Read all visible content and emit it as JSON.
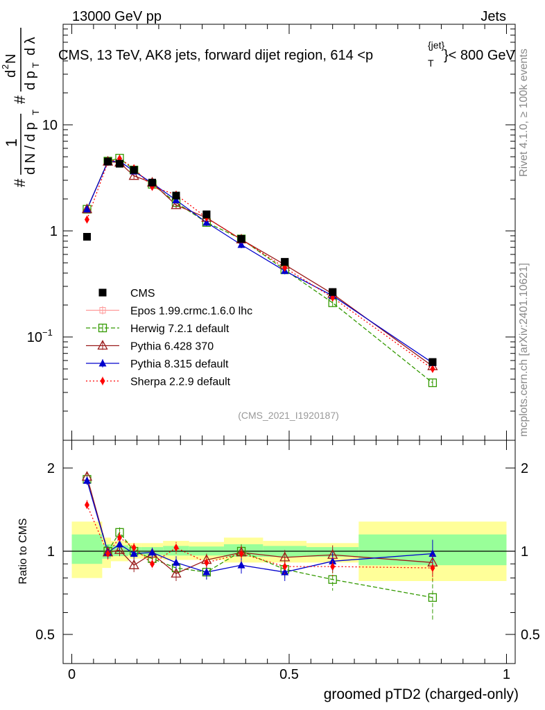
{
  "header": {
    "energy_label": "13000 GeV pp",
    "category_label": "Jets"
  },
  "plot_title": {
    "main": "CMS, 13 TeV, AK8 jets, forward dijet region, 614 <p",
    "sub_T": "T",
    "sup_jet": "{jet}",
    "tail": "}< 800 GeV"
  },
  "side_labels": {
    "rivet": "Rivet 4.1.0, ≥ 100k events",
    "mcplots": "mcplots.cern.ch [arXiv:2401.10621]"
  },
  "analysis_id": "(CMS_2021_I1920187)",
  "y_axis_main": {
    "hash1": "#",
    "num_1": "1",
    "den_dN": "d N / d p",
    "den_sub": "T",
    "hash2": "#",
    "dN_num": "d",
    "dN_sup": "2",
    "dN_N": "N",
    "dp_label": "d p",
    "dp_sub": "T",
    "dlambda": "d λ"
  },
  "chart_data": [
    {
      "type": "line",
      "panel": "main",
      "yscale": "log",
      "ylim": [
        0.012,
        50
      ],
      "xlim": [
        -0.02,
        1.02
      ],
      "yticks": [
        {
          "value": 10,
          "label": "10"
        },
        {
          "value": 1,
          "label": "1"
        },
        {
          "value": 0.1,
          "label": "10",
          "sup": "−1"
        }
      ],
      "x": [
        0.035,
        0.083,
        0.11,
        0.143,
        0.185,
        0.24,
        0.31,
        0.39,
        0.49,
        0.6,
        0.83
      ],
      "series": [
        {
          "name": "CMS",
          "legend": "CMS",
          "color": "#000000",
          "marker": "square-filled",
          "dash": "none",
          "values": [
            0.88,
            4.5,
            4.3,
            3.75,
            2.85,
            2.15,
            1.43,
            0.84,
            0.51,
            0.265,
            0.058
          ]
        },
        {
          "name": "Epos",
          "legend": "Epos 1.99.crmc.1.6.0 lhc",
          "color": "#ff9999",
          "marker": "cross-square",
          "dash": "none",
          "values": [
            null,
            null,
            null,
            null,
            null,
            null,
            null,
            null,
            null,
            null,
            null
          ]
        },
        {
          "name": "Herwig",
          "legend": "Herwig 7.2.1 default",
          "color": "#339900",
          "marker": "square-open",
          "dash": "6,3",
          "values": [
            1.6,
            4.55,
            4.85,
            3.75,
            2.75,
            1.85,
            1.2,
            0.84,
            0.43,
            0.21,
            0.037
          ]
        },
        {
          "name": "Pythia6",
          "legend": "Pythia 6.428 370",
          "color": "#991a1a",
          "marker": "triangle-open",
          "dash": "none",
          "values": [
            1.6,
            4.5,
            4.4,
            3.3,
            2.85,
            1.75,
            1.33,
            0.83,
            0.48,
            0.255,
            0.053
          ]
        },
        {
          "name": "Pythia8",
          "legend": "Pythia 8.315 default",
          "color": "#0000cc",
          "marker": "triangle-filled",
          "dash": "none",
          "values": [
            1.6,
            4.5,
            4.55,
            3.65,
            2.82,
            1.95,
            1.2,
            0.74,
            0.42,
            0.245,
            0.057
          ]
        },
        {
          "name": "Sherpa",
          "legend": "Sherpa 2.2.9 default",
          "color": "#ff0000",
          "marker": "diamond-filled",
          "dash": "2,3",
          "values": [
            1.28,
            4.45,
            4.8,
            3.9,
            2.6,
            2.2,
            1.33,
            0.83,
            0.45,
            0.235,
            0.05
          ]
        }
      ]
    },
    {
      "type": "line",
      "panel": "ratio",
      "yscale": "log",
      "ylim": [
        0.42,
        2.4
      ],
      "xlim": [
        -0.02,
        1.02
      ],
      "ylabel": "Ratio to CMS",
      "xlabel": "groomed pTD2 (charged-only)",
      "yticks": [
        {
          "value": 2,
          "label": "2"
        },
        {
          "value": 1,
          "label": "1"
        },
        {
          "value": 0.5,
          "label": "0.5"
        }
      ],
      "xticks": [
        {
          "value": 0,
          "label": "0"
        },
        {
          "value": 0.5,
          "label": "0.5"
        },
        {
          "value": 1,
          "label": "1"
        }
      ],
      "uncertainty_bins": [
        {
          "x0": 0.0,
          "x1": 0.07,
          "yellow": [
            0.8,
            1.28
          ],
          "green": [
            0.9,
            1.15
          ]
        },
        {
          "x0": 0.07,
          "x1": 0.09,
          "yellow": [
            0.87,
            1.12
          ],
          "green": [
            0.94,
            1.06
          ]
        },
        {
          "x0": 0.09,
          "x1": 0.13,
          "yellow": [
            0.92,
            1.09
          ],
          "green": [
            0.96,
            1.05
          ]
        },
        {
          "x0": 0.13,
          "x1": 0.16,
          "yellow": [
            0.94,
            1.07
          ],
          "green": [
            0.97,
            1.035
          ]
        },
        {
          "x0": 0.16,
          "x1": 0.21,
          "yellow": [
            0.94,
            1.07
          ],
          "green": [
            0.97,
            1.035
          ]
        },
        {
          "x0": 0.21,
          "x1": 0.27,
          "yellow": [
            0.93,
            1.09
          ],
          "green": [
            0.965,
            1.045
          ]
        },
        {
          "x0": 0.27,
          "x1": 0.35,
          "yellow": [
            0.93,
            1.08
          ],
          "green": [
            0.965,
            1.04
          ]
        },
        {
          "x0": 0.35,
          "x1": 0.44,
          "yellow": [
            0.91,
            1.12
          ],
          "green": [
            0.955,
            1.06
          ]
        },
        {
          "x0": 0.44,
          "x1": 0.54,
          "yellow": [
            0.91,
            1.09
          ],
          "green": [
            0.955,
            1.045
          ]
        },
        {
          "x0": 0.54,
          "x1": 0.66,
          "yellow": [
            0.91,
            1.07
          ],
          "green": [
            0.955,
            1.035
          ]
        },
        {
          "x0": 0.66,
          "x1": 1.0,
          "yellow": [
            0.78,
            1.28
          ],
          "green": [
            0.89,
            1.15
          ]
        }
      ],
      "x": [
        0.035,
        0.083,
        0.11,
        0.143,
        0.185,
        0.24,
        0.31,
        0.39,
        0.49,
        0.6,
        0.83
      ],
      "series": [
        {
          "name": "Herwig",
          "color": "#339900",
          "marker": "square-open",
          "dash": "6,3",
          "values": [
            1.82,
            1.0,
            1.17,
            1.0,
            0.94,
            0.87,
            0.84,
            1.0,
            0.86,
            0.79,
            0.68
          ],
          "errors": [
            0.06,
            0.05,
            0.05,
            0.04,
            0.04,
            0.05,
            0.05,
            0.06,
            0.06,
            0.07,
            0.12
          ]
        },
        {
          "name": "Pythia6",
          "color": "#991a1a",
          "marker": "triangle-open",
          "dash": "none",
          "values": [
            1.86,
            0.99,
            1.01,
            0.89,
            0.98,
            0.83,
            0.93,
            0.99,
            0.95,
            0.97,
            0.91
          ],
          "errors": [
            0.07,
            0.05,
            0.05,
            0.05,
            0.05,
            0.05,
            0.05,
            0.06,
            0.06,
            0.08,
            0.1
          ]
        },
        {
          "name": "Pythia8",
          "color": "#0000cc",
          "marker": "triangle-filled",
          "dash": "none",
          "values": [
            1.8,
            0.99,
            1.06,
            0.98,
            0.99,
            0.91,
            0.84,
            0.89,
            0.84,
            0.92,
            0.98
          ],
          "errors": [
            0.06,
            0.05,
            0.05,
            0.04,
            0.04,
            0.05,
            0.05,
            0.06,
            0.06,
            0.07,
            0.12
          ]
        },
        {
          "name": "Sherpa",
          "color": "#ff0000",
          "marker": "diamond-filled",
          "dash": "2,3",
          "values": [
            1.47,
            0.98,
            1.12,
            1.03,
            0.9,
            1.03,
            0.91,
            0.98,
            0.88,
            0.88,
            0.87
          ],
          "errors": [
            0.06,
            0.05,
            0.05,
            0.04,
            0.04,
            0.05,
            0.05,
            0.06,
            0.06,
            0.07,
            0.1
          ]
        }
      ]
    }
  ]
}
